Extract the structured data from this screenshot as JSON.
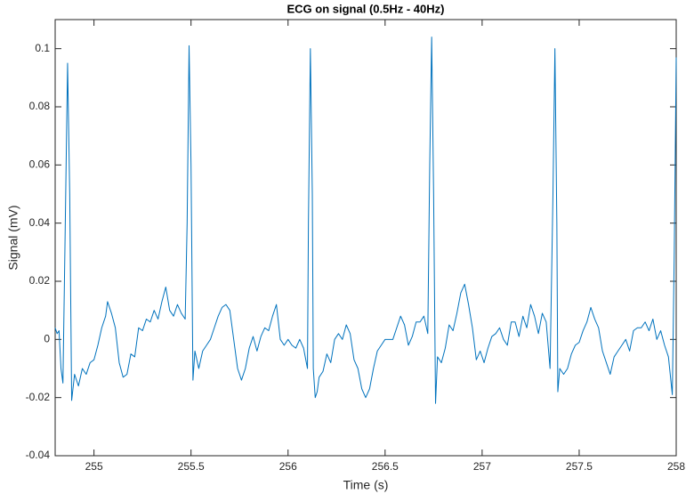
{
  "chart_data": {
    "type": "line",
    "title": "ECG on signal (0.5Hz - 40Hz)",
    "x_label": "Time (s)",
    "y_label": "Signal (mV)",
    "xlim": [
      254.8,
      258
    ],
    "ylim": [
      -0.04,
      0.11
    ],
    "xticks": [
      255,
      255.5,
      256,
      256.5,
      257,
      257.5,
      258
    ],
    "yticks": [
      -0.04,
      -0.02,
      0,
      0.02,
      0.04,
      0.06,
      0.08,
      0.1
    ],
    "grid": false,
    "series": [
      {
        "color": "#0072bd",
        "x": [
          254.8,
          254.81,
          254.82,
          254.83,
          254.84,
          254.85,
          254.864,
          254.875,
          254.885,
          254.9,
          254.92,
          254.94,
          254.96,
          254.98,
          255.0,
          255.02,
          255.04,
          255.06,
          255.07,
          255.09,
          255.11,
          255.13,
          255.15,
          255.17,
          255.19,
          255.21,
          255.23,
          255.25,
          255.27,
          255.29,
          255.31,
          255.33,
          255.35,
          255.37,
          255.39,
          255.41,
          255.43,
          255.45,
          255.47,
          255.48,
          255.49,
          255.5,
          255.51,
          255.52,
          255.54,
          255.56,
          255.58,
          255.6,
          255.62,
          255.64,
          255.66,
          255.68,
          255.7,
          255.72,
          255.74,
          255.76,
          255.78,
          255.8,
          255.82,
          255.84,
          255.86,
          255.88,
          255.9,
          255.92,
          255.94,
          255.96,
          255.98,
          256.0,
          256.02,
          256.04,
          256.06,
          256.08,
          256.1,
          256.105,
          256.115,
          256.125,
          256.13,
          256.14,
          256.15,
          256.16,
          256.18,
          256.2,
          256.22,
          256.24,
          256.26,
          256.28,
          256.3,
          256.32,
          256.34,
          256.36,
          256.38,
          256.4,
          256.42,
          256.44,
          256.46,
          256.48,
          256.5,
          256.52,
          256.54,
          256.56,
          256.58,
          256.6,
          256.62,
          256.64,
          256.66,
          256.68,
          256.7,
          256.72,
          256.73,
          256.74,
          256.75,
          256.76,
          256.77,
          256.79,
          256.81,
          256.83,
          256.85,
          256.87,
          256.89,
          256.91,
          256.93,
          256.95,
          256.97,
          256.99,
          257.01,
          257.03,
          257.05,
          257.07,
          257.09,
          257.11,
          257.13,
          257.15,
          257.17,
          257.19,
          257.21,
          257.23,
          257.25,
          257.27,
          257.29,
          257.31,
          257.33,
          257.35,
          257.365,
          257.375,
          257.385,
          257.39,
          257.4,
          257.42,
          257.44,
          257.46,
          257.48,
          257.5,
          257.52,
          257.54,
          257.56,
          257.58,
          257.6,
          257.62,
          257.64,
          257.66,
          257.68,
          257.7,
          257.72,
          257.74,
          257.76,
          257.78,
          257.8,
          257.82,
          257.84,
          257.86,
          257.88,
          257.9,
          257.92,
          257.94,
          257.96,
          257.98,
          257.99,
          258.0
        ],
        "values": [
          0.004,
          0.002,
          0.003,
          -0.01,
          -0.015,
          0.03,
          0.095,
          0.05,
          -0.021,
          -0.012,
          -0.016,
          -0.01,
          -0.012,
          -0.008,
          -0.007,
          -0.002,
          0.004,
          0.008,
          0.013,
          0.009,
          0.004,
          -0.008,
          -0.013,
          -0.012,
          -0.005,
          -0.006,
          0.004,
          0.003,
          0.007,
          0.006,
          0.01,
          0.007,
          0.013,
          0.018,
          0.01,
          0.008,
          0.012,
          0.009,
          0.007,
          0.04,
          0.101,
          0.06,
          -0.014,
          -0.004,
          -0.01,
          -0.004,
          -0.002,
          0.0,
          0.004,
          0.008,
          0.011,
          0.012,
          0.01,
          0.0,
          -0.01,
          -0.014,
          -0.01,
          -0.003,
          0.001,
          -0.004,
          0.001,
          0.004,
          0.003,
          0.008,
          0.012,
          0.0,
          -0.002,
          0.0,
          -0.002,
          -0.003,
          0.0,
          -0.003,
          -0.01,
          0.04,
          0.1,
          0.05,
          -0.01,
          -0.02,
          -0.018,
          -0.013,
          -0.011,
          -0.005,
          -0.008,
          0.0,
          0.002,
          0.0,
          0.005,
          0.002,
          -0.007,
          -0.01,
          -0.017,
          -0.02,
          -0.017,
          -0.01,
          -0.004,
          -0.002,
          0.0,
          0.0,
          0.0,
          0.004,
          0.008,
          0.005,
          -0.002,
          0.001,
          0.006,
          0.006,
          0.008,
          0.002,
          0.06,
          0.104,
          0.05,
          -0.022,
          -0.006,
          -0.008,
          -0.003,
          0.005,
          0.003,
          0.009,
          0.016,
          0.019,
          0.012,
          0.004,
          -0.007,
          -0.004,
          -0.008,
          -0.003,
          0.001,
          0.002,
          0.004,
          0.0,
          -0.002,
          0.006,
          0.006,
          0.001,
          0.008,
          0.004,
          0.012,
          0.008,
          0.002,
          0.009,
          0.006,
          -0.01,
          0.05,
          0.1,
          0.04,
          -0.018,
          -0.01,
          -0.012,
          -0.01,
          -0.005,
          -0.002,
          -0.001,
          0.003,
          0.006,
          0.011,
          0.007,
          0.004,
          -0.004,
          -0.008,
          -0.012,
          -0.006,
          -0.004,
          -0.002,
          0.0,
          -0.004,
          0.003,
          0.004,
          0.004,
          0.006,
          0.003,
          0.007,
          0.0,
          0.003,
          -0.002,
          -0.006,
          -0.019,
          0.03,
          0.097
        ]
      }
    ]
  }
}
